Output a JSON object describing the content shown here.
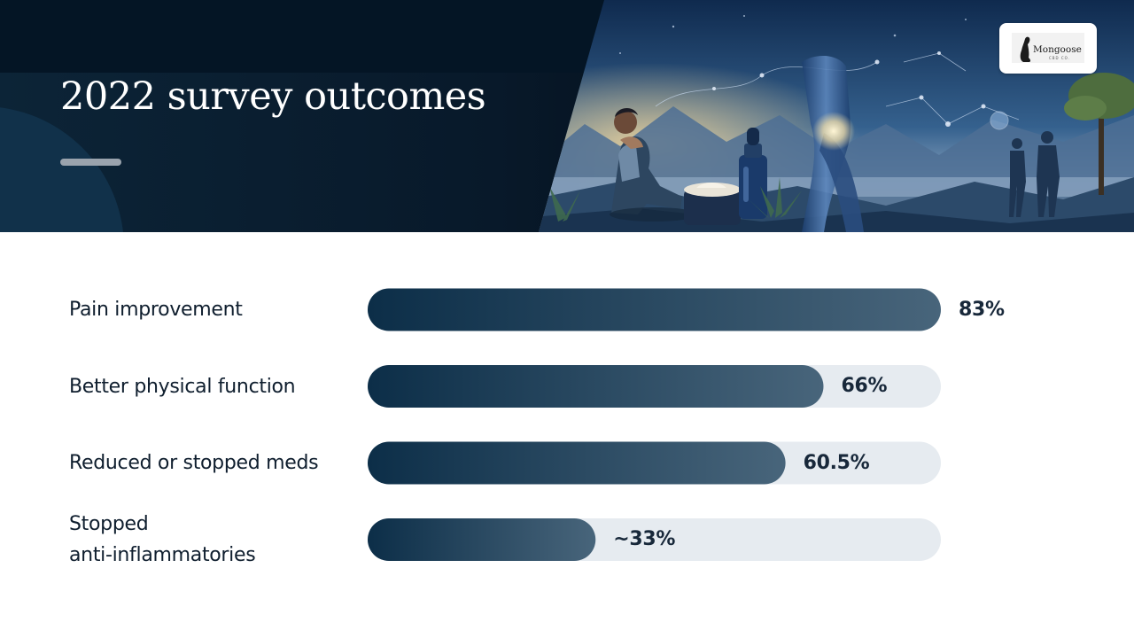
{
  "header": {
    "title": "2022 survey outcomes"
  },
  "logo": {
    "text": "Mongoose",
    "subtext": "CBD CO."
  },
  "colors": {
    "bar_dark": "#0c2e48",
    "bar_light": "#48657b",
    "track": "#e6ebf0",
    "header_bg": "#041525"
  },
  "chart_data": {
    "type": "bar",
    "orientation": "horizontal",
    "categories": [
      "Pain improvement",
      "Better physical function",
      "Reduced or stopped meds",
      "Stopped anti-inflammatories"
    ],
    "display_lines": [
      [
        "Pain improvement"
      ],
      [
        "Better physical function"
      ],
      [
        "Reduced or stopped meds"
      ],
      [
        "Stopped",
        "anti-inflammatories"
      ]
    ],
    "values": [
      83,
      66,
      60.5,
      33
    ],
    "value_labels": [
      "83%",
      "66%",
      "60.5%",
      "~33%"
    ],
    "xlim": [
      0,
      83
    ],
    "grid": false,
    "legend": "none"
  }
}
